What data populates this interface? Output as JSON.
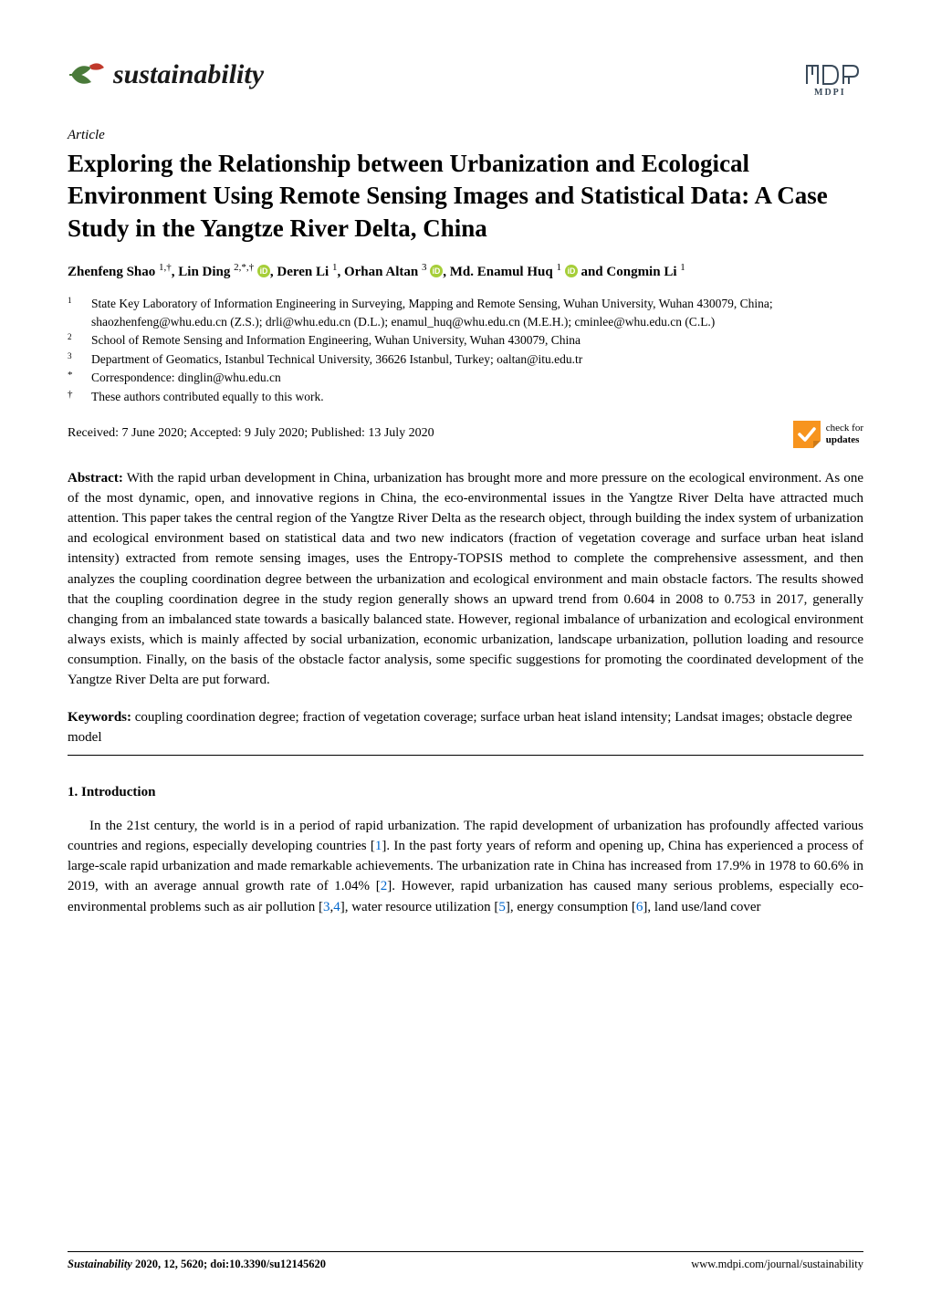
{
  "journal": {
    "name": "sustainability",
    "leaf_colors": {
      "main": "#4a7a3a",
      "accent": "#c0392b"
    },
    "mdpi_logo_text": "MDPI",
    "mdpi_color": "#3a4a5a"
  },
  "article": {
    "type": "Article",
    "title": "Exploring the Relationship between Urbanization and Ecological Environment Using Remote Sensing Images and Statistical Data: A Case Study in the Yangtze River Delta, China",
    "authors_html": "Zhenfeng Shao <sup>1,†</sup>, Lin Ding <sup>2,*,†</sup> <span class='orcid-slot' data-name='orcid-icon'></span>, Deren Li <sup>1</sup>, Orhan Altan <sup>3</sup> <span class='orcid-slot' data-name='orcid-icon'></span>, Md. Enamul Huq <sup>1</sup> <span class='orcid-slot' data-name='orcid-icon'></span> and Congmin Li <sup>1</sup>",
    "affiliations": [
      {
        "num": "1",
        "text": "State Key Laboratory of Information Engineering in Surveying, Mapping and Remote Sensing, Wuhan University, Wuhan 430079, China; shaozhenfeng@whu.edu.cn (Z.S.); drli@whu.edu.cn (D.L.); enamul_huq@whu.edu.cn (M.E.H.); cminlee@whu.edu.cn (C.L.)"
      },
      {
        "num": "2",
        "text": "School of Remote Sensing and Information Engineering, Wuhan University, Wuhan 430079, China"
      },
      {
        "num": "3",
        "text": "Department of Geomatics, Istanbul Technical University, 36626 Istanbul, Turkey; oaltan@itu.edu.tr"
      },
      {
        "num": "*",
        "text": "Correspondence: dinglin@whu.edu.cn"
      },
      {
        "num": "†",
        "text": "These authors contributed equally to this work."
      }
    ],
    "received": "Received: 7 June 2020; Accepted: 9 July 2020; Published: 13 July 2020",
    "check_updates": {
      "line1": "check for",
      "line2": "updates",
      "icon_bg": "#f7941e",
      "icon_check": "#ffffff"
    },
    "abstract_label": "Abstract:",
    "abstract": "With the rapid urban development in China, urbanization has brought more and more pressure on the ecological environment. As one of the most dynamic, open, and innovative regions in China, the eco-environmental issues in the Yangtze River Delta have attracted much attention. This paper takes the central region of the Yangtze River Delta as the research object, through building the index system of urbanization and ecological environment based on statistical data and two new indicators (fraction of vegetation coverage and surface urban heat island intensity) extracted from remote sensing images, uses the Entropy-TOPSIS method to complete the comprehensive assessment, and then analyzes the coupling coordination degree between the urbanization and ecological environment and main obstacle factors. The results showed that the coupling coordination degree in the study region generally shows an upward trend from 0.604 in 2008 to 0.753 in 2017, generally changing from an imbalanced state towards a basically balanced state. However, regional imbalance of urbanization and ecological environment always exists, which is mainly affected by social urbanization, economic urbanization, landscape urbanization, pollution loading and resource consumption. Finally, on the basis of the obstacle factor analysis, some specific suggestions for promoting the coordinated development of the Yangtze River Delta are put forward.",
    "keywords_label": "Keywords:",
    "keywords": "coupling coordination degree; fraction of vegetation coverage; surface urban heat island intensity; Landsat images; obstacle degree model",
    "section1_heading": "1. Introduction",
    "intro_html": "In the 21st century, the world is in a period of rapid urbanization. The rapid development of urbanization has profoundly affected various countries and regions, especially developing countries [<span class='ref'>1</span>]. In the past forty years of reform and opening up, China has experienced a process of large-scale rapid urbanization and made remarkable achievements. The urbanization rate in China has increased from 17.9% in 1978 to 60.6% in 2019, with an average annual growth rate of 1.04% [<span class='ref'>2</span>]. However, rapid urbanization has caused many serious problems, especially eco-environmental problems such as air pollution [<span class='ref'>3</span>,<span class='ref'>4</span>], water resource utilization [<span class='ref'>5</span>], energy consumption [<span class='ref'>6</span>], land use/land cover"
  },
  "footer": {
    "left_italic": "Sustainability",
    "left_rest": " 2020, 12, 5620; doi:10.3390/su12145620",
    "right": "www.mdpi.com/journal/sustainability"
  },
  "orcid": {
    "bg": "#a6ce39",
    "fg": "#ffffff"
  }
}
